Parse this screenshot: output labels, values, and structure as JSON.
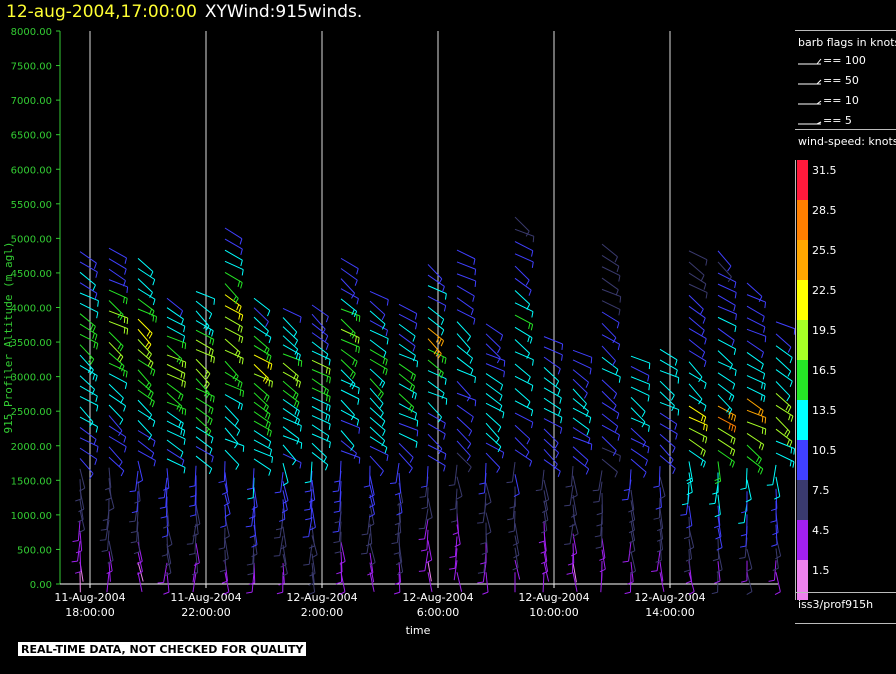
{
  "header": {
    "date_time": "12-aug-2004,17:00:00",
    "variable": "XYWind:915winds."
  },
  "colors": {
    "axis": "#33cc33",
    "title_date": "#ffff33"
  },
  "footer": {
    "quality_notice": "REAL-TIME DATA, NOT CHECKED FOR QUALITY"
  },
  "legend": {
    "barb_header": "barb flags in knots",
    "flags": [
      {
        "label": "== 100"
      },
      {
        "label": "== 50"
      },
      {
        "label": "== 10"
      },
      {
        "label": "== 5"
      }
    ],
    "speed_header": "wind-speed: knots",
    "scale": [
      {
        "label": "31.5",
        "color": "#ff1a3c"
      },
      {
        "label": "28.5",
        "color": "#ff7f00"
      },
      {
        "label": "25.5",
        "color": "#ffa600"
      },
      {
        "label": "22.5",
        "color": "#ffff00"
      },
      {
        "label": "19.5",
        "color": "#a6ff26"
      },
      {
        "label": "16.5",
        "color": "#26e626"
      },
      {
        "label": "13.5",
        "color": "#00ffff"
      },
      {
        "label": "10.5",
        "color": "#4040ff"
      },
      {
        "label": "7.5",
        "color": "#3a3a6e"
      },
      {
        "label": "4.5",
        "color": "#a020f0"
      },
      {
        "label": "1.5",
        "color": "#ee82ee"
      }
    ],
    "station": "iss3/prof915h"
  },
  "chart_data": {
    "type": "scatter",
    "ylabel": "915 Profiler Altitude (m agl)",
    "xlabel": "time",
    "ylim": [
      0,
      8000
    ],
    "y_ticks": [
      "0.00",
      "500.00",
      "1000.00",
      "1500.00",
      "2000.00",
      "2500.00",
      "3000.00",
      "3500.00",
      "4000.00",
      "4500.00",
      "5000.00",
      "5500.00",
      "6000.00",
      "6500.00",
      "7000.00",
      "7500.00",
      "8000.00"
    ],
    "x_ticks": [
      {
        "date": "11-Aug-2004",
        "time": "18:00:00"
      },
      {
        "date": "11-Aug-2004",
        "time": "22:00:00"
      },
      {
        "date": "12-Aug-2004",
        "time": "2:00:00"
      },
      {
        "date": "12-Aug-2004",
        "time": "6:00:00"
      },
      {
        "date": "12-Aug-2004",
        "time": "10:00:00"
      },
      {
        "date": "12-Aug-2004",
        "time": "14:00:00"
      }
    ],
    "grid": "vertical lines at x ticks",
    "profiles_hour_offset_first": 1,
    "profiles": [
      {
        "top": 4900,
        "speed": [
          3,
          6,
          5,
          7,
          8,
          9,
          10,
          12,
          13,
          14,
          15,
          16,
          17,
          14,
          12,
          10
        ]
      },
      {
        "top": 4950,
        "speed": [
          4,
          6,
          7,
          8,
          8,
          9,
          10,
          11,
          13,
          14,
          16,
          18,
          20,
          15,
          12,
          11
        ]
      },
      {
        "top": 4800,
        "speed": [
          3,
          5,
          7,
          8,
          9,
          10,
          11,
          12,
          14,
          15,
          17,
          19,
          22,
          16,
          13,
          12
        ]
      },
      {
        "top": 4200,
        "speed": [
          5,
          6,
          8,
          9,
          10,
          11,
          12,
          13,
          15,
          16,
          18,
          20,
          17,
          14,
          12
        ]
      },
      {
        "top": 4300,
        "speed": [
          4,
          6,
          7,
          9,
          10,
          11,
          12,
          14,
          15,
          16,
          18,
          19,
          18,
          15,
          13
        ]
      },
      {
        "top": 5250,
        "speed": [
          5,
          7,
          8,
          10,
          11,
          12,
          13,
          14,
          15,
          17,
          18,
          20,
          24,
          16,
          13,
          12
        ]
      },
      {
        "top": 4200,
        "speed": [
          6,
          7,
          9,
          10,
          11,
          12,
          13,
          14,
          16,
          17,
          18,
          21,
          16,
          13,
          12
        ]
      },
      {
        "top": 4050,
        "speed": [
          5,
          7,
          8,
          9,
          10,
          11,
          12,
          13,
          14,
          15,
          17,
          18,
          15,
          13,
          12
        ]
      },
      {
        "top": 4100,
        "speed": [
          6,
          7,
          8,
          9,
          10,
          11,
          12,
          13,
          14,
          15,
          16,
          18,
          14,
          12,
          11
        ]
      },
      {
        "top": 4800,
        "speed": [
          5,
          6,
          8,
          9,
          9,
          10,
          11,
          12,
          13,
          14,
          15,
          16,
          18,
          15,
          12,
          11
        ]
      },
      {
        "top": 4300,
        "speed": [
          4,
          6,
          7,
          8,
          9,
          10,
          11,
          12,
          13,
          14,
          15,
          17,
          14,
          12,
          11
        ]
      },
      {
        "top": 4100,
        "speed": [
          5,
          6,
          7,
          8,
          9,
          10,
          11,
          12,
          14,
          15,
          16,
          13,
          12,
          11
        ]
      },
      {
        "top": 4700,
        "speed": [
          3,
          5,
          6,
          7,
          8,
          9,
          10,
          12,
          13,
          14,
          17,
          25,
          14,
          12,
          10
        ]
      },
      {
        "top": 4900,
        "speed": [
          4,
          5,
          6,
          7,
          8,
          9,
          10,
          11,
          12,
          13,
          14,
          12,
          11,
          10
        ]
      },
      {
        "top": 3800,
        "speed": [
          5,
          6,
          7,
          8,
          9,
          10,
          11,
          12,
          13,
          14,
          12,
          11,
          10
        ]
      },
      {
        "top": 5400,
        "speed": [
          4,
          6,
          7,
          8,
          9,
          10,
          11,
          12,
          13,
          14,
          15,
          12,
          10,
          9,
          8
        ]
      },
      {
        "top": 3600,
        "speed": [
          4,
          5,
          6,
          7,
          8,
          9,
          10,
          11,
          12,
          13,
          12,
          11
        ]
      },
      {
        "top": 3400,
        "speed": [
          3,
          5,
          6,
          7,
          8,
          9,
          10,
          11,
          12,
          13,
          12,
          11
        ]
      },
      {
        "top": 5000,
        "speed": [
          4,
          5,
          6,
          7,
          8,
          9,
          10,
          11,
          12,
          13,
          11,
          10,
          9,
          8,
          8
        ]
      },
      {
        "top": 3300,
        "speed": [
          5,
          6,
          7,
          8,
          9,
          10,
          11,
          12,
          13,
          14,
          12
        ]
      },
      {
        "top": 3400,
        "speed": [
          4,
          6,
          7,
          8,
          9,
          10,
          11,
          12,
          13,
          14,
          12
        ]
      },
      {
        "top": 4900,
        "speed": [
          5,
          7,
          9,
          11,
          13,
          15,
          18,
          22,
          14,
          13,
          12,
          11,
          10,
          9,
          8
        ]
      },
      {
        "top": 4900,
        "speed": [
          6,
          8,
          10,
          12,
          14,
          17,
          20,
          27,
          15,
          14,
          13,
          12,
          11,
          10,
          9
        ]
      },
      {
        "top": 4400,
        "speed": [
          6,
          8,
          10,
          12,
          14,
          16,
          19,
          24,
          15,
          13,
          12,
          11,
          10
        ]
      },
      {
        "top": 3800,
        "speed": [
          5,
          7,
          9,
          11,
          13,
          15,
          18,
          20,
          14,
          12,
          11
        ]
      },
      {
        "top": 3500,
        "speed": [
          4,
          6,
          8,
          10,
          12,
          14,
          17,
          19,
          13,
          12
        ]
      }
    ]
  }
}
